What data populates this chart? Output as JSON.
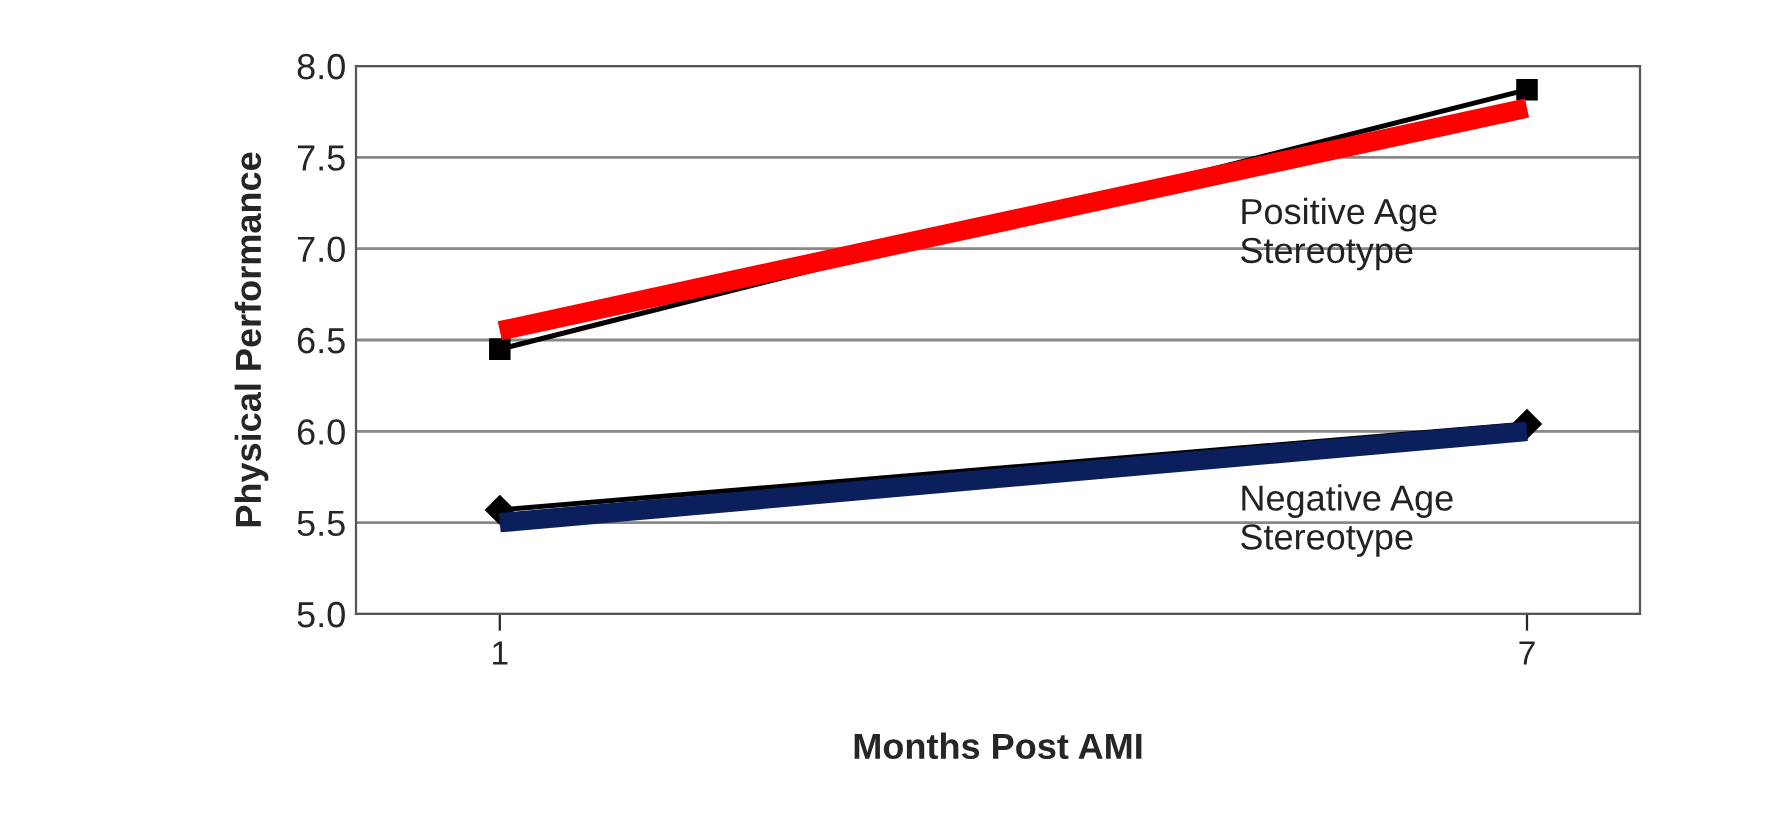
{
  "chart_data": {
    "type": "line",
    "xlabel": "Months Post AMI",
    "ylabel": "Physical Performance",
    "categories": [
      "1",
      "7"
    ],
    "series": [
      {
        "color": "#000000",
        "values": [
          6.45,
          7.87
        ],
        "marker": "square"
      },
      {
        "color": "#000000",
        "values": [
          5.57,
          6.04
        ],
        "marker": "diamond"
      },
      {
        "name": "Positive Age\nStereotype",
        "color": "#ff0000",
        "values": [
          6.55,
          7.77
        ],
        "marker": "none"
      },
      {
        "name": "Negative Age\nStereotype",
        "color": "#0a1f5c",
        "values": [
          5.5,
          6.0
        ],
        "marker": "none"
      }
    ],
    "ylim": [
      5.0,
      8.0
    ],
    "yticks": [
      {
        "value": 5.0,
        "label": "5.0"
      },
      {
        "value": 5.5,
        "label": "5.5"
      },
      {
        "value": 6.0,
        "label": "6.0"
      },
      {
        "value": 6.5,
        "label": "6.5"
      },
      {
        "value": 7.0,
        "label": "7.0"
      },
      {
        "value": 7.5,
        "label": "7.5"
      },
      {
        "value": 8.0,
        "label": "8.0"
      }
    ],
    "grid": "y",
    "legend": false,
    "line_style": "solid"
  }
}
